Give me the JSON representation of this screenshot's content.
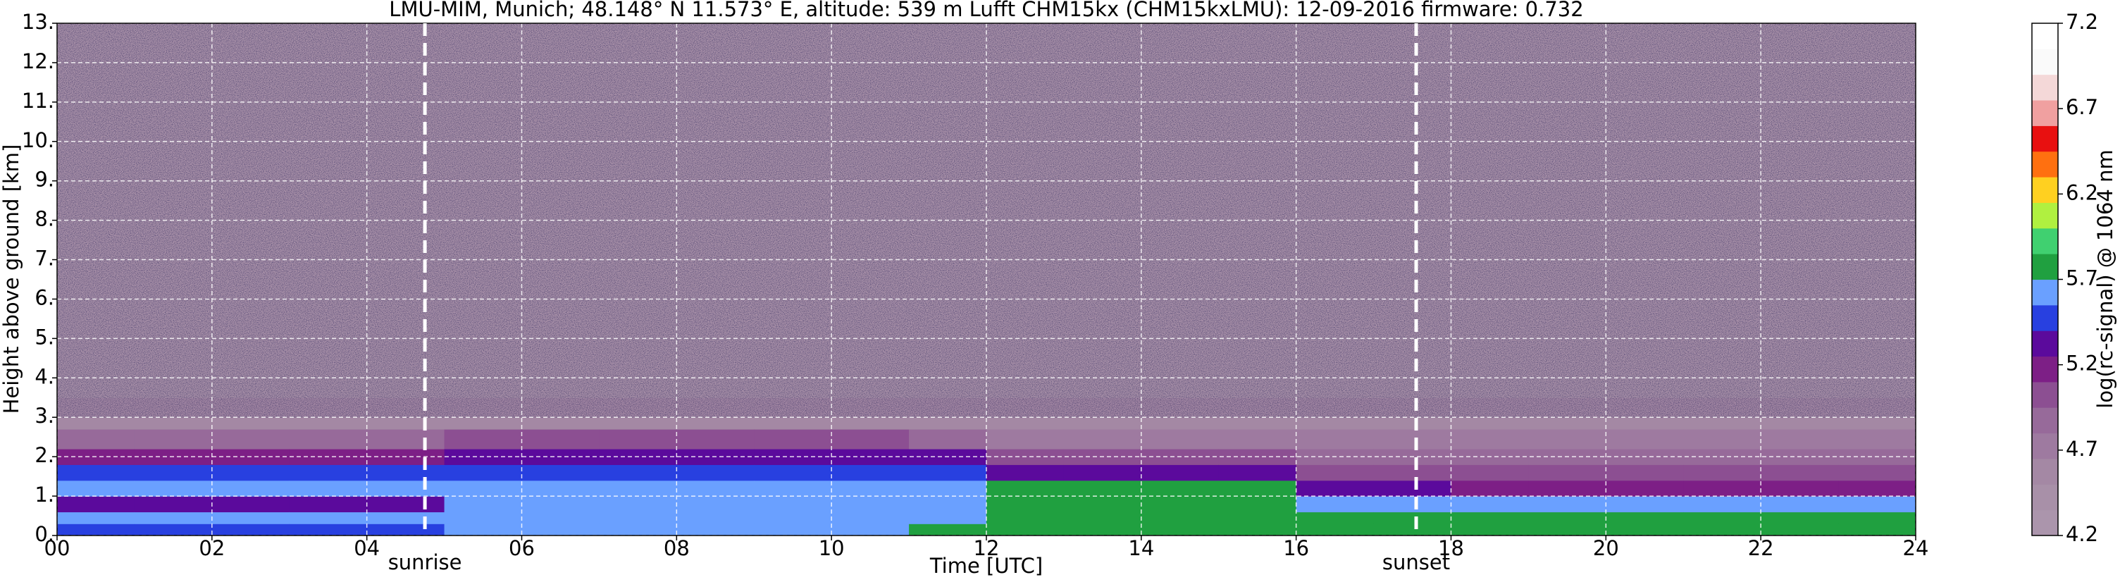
{
  "chart_data": {
    "type": "heatmap",
    "title": "LMU-MIM, Munich; 48.148° N 11.573° E, altitude: 539 m    Lufft CHM15kx (CHM15kxLMU): 12-09-2016    firmware: 0.732",
    "x_label": "Time [UTC]",
    "y_label": "Height above ground [km]",
    "colorbar_label": "log(rc-signal) @ 1064 nm",
    "x": [
      0,
      1,
      2,
      3,
      4,
      5,
      6,
      7,
      8,
      9,
      10,
      11,
      12,
      13,
      14,
      15,
      16,
      17,
      18,
      19,
      20,
      21,
      22,
      23,
      24
    ],
    "y": [
      0,
      0.3,
      0.6,
      1.0,
      1.4,
      1.8,
      2.2,
      2.7,
      3.5,
      13
    ],
    "values": [
      [
        5.45,
        5.6,
        5.3,
        5.6,
        5.45,
        5.2,
        4.9,
        4.6,
        4.45
      ],
      [
        5.45,
        5.6,
        5.3,
        5.6,
        5.45,
        5.2,
        4.9,
        4.6,
        4.45
      ],
      [
        5.45,
        5.6,
        5.3,
        5.6,
        5.45,
        5.2,
        4.9,
        4.6,
        4.45
      ],
      [
        5.45,
        5.6,
        5.3,
        5.6,
        5.45,
        5.2,
        4.9,
        4.6,
        4.45
      ],
      [
        5.45,
        5.6,
        5.3,
        5.6,
        5.45,
        5.2,
        4.9,
        4.6,
        4.45
      ],
      [
        5.6,
        5.6,
        5.6,
        5.6,
        5.55,
        5.35,
        4.95,
        4.6,
        4.45
      ],
      [
        5.6,
        5.6,
        5.6,
        5.6,
        5.55,
        5.35,
        4.95,
        4.6,
        4.45
      ],
      [
        5.6,
        5.6,
        5.6,
        5.6,
        5.55,
        5.35,
        4.95,
        4.6,
        4.45
      ],
      [
        5.6,
        5.6,
        5.6,
        5.6,
        5.55,
        5.35,
        4.95,
        4.6,
        4.45
      ],
      [
        5.6,
        5.6,
        5.6,
        5.6,
        5.55,
        5.35,
        4.95,
        4.6,
        4.45
      ],
      [
        5.6,
        5.6,
        5.6,
        5.6,
        5.55,
        5.35,
        4.95,
        4.6,
        4.45
      ],
      [
        5.75,
        5.65,
        5.65,
        5.6,
        5.55,
        5.35,
        4.9,
        4.6,
        4.45
      ],
      [
        5.85,
        5.8,
        5.75,
        5.7,
        5.3,
        5.0,
        4.8,
        4.55,
        4.45
      ],
      [
        5.85,
        5.8,
        5.75,
        5.7,
        5.3,
        5.0,
        4.8,
        4.55,
        4.45
      ],
      [
        5.85,
        5.8,
        5.75,
        5.7,
        5.3,
        5.0,
        4.8,
        4.55,
        4.45
      ],
      [
        5.85,
        5.8,
        5.75,
        5.7,
        5.3,
        5.0,
        4.8,
        4.55,
        4.45
      ],
      [
        5.8,
        5.75,
        5.6,
        5.3,
        5.1,
        4.9,
        4.7,
        4.55,
        4.45
      ],
      [
        5.8,
        5.75,
        5.6,
        5.3,
        5.1,
        4.9,
        4.7,
        4.55,
        4.45
      ],
      [
        5.85,
        5.75,
        5.6,
        5.2,
        5.1,
        4.9,
        4.7,
        4.55,
        4.45
      ],
      [
        5.85,
        5.75,
        5.6,
        5.2,
        5.1,
        4.9,
        4.7,
        4.55,
        4.45
      ],
      [
        5.85,
        5.75,
        5.6,
        5.2,
        5.1,
        4.9,
        4.7,
        4.55,
        4.45
      ],
      [
        5.85,
        5.75,
        5.6,
        5.2,
        5.1,
        4.9,
        4.7,
        4.55,
        4.45
      ],
      [
        5.85,
        5.75,
        5.6,
        5.2,
        5.1,
        4.9,
        4.7,
        4.55,
        4.45
      ],
      [
        5.85,
        5.75,
        5.6,
        5.2,
        5.1,
        4.9,
        4.7,
        4.55,
        4.45
      ]
    ],
    "xlim": [
      0,
      24
    ],
    "xticks": [
      {
        "value": 0,
        "label": "00"
      },
      {
        "value": 2,
        "label": "02"
      },
      {
        "value": 4,
        "label": "04"
      },
      {
        "value": 6,
        "label": "06"
      },
      {
        "value": 8,
        "label": "08"
      },
      {
        "value": 10,
        "label": "10"
      },
      {
        "value": 12,
        "label": "12"
      },
      {
        "value": 14,
        "label": "14"
      },
      {
        "value": 16,
        "label": "16"
      },
      {
        "value": 18,
        "label": "18"
      },
      {
        "value": 20,
        "label": "20"
      },
      {
        "value": 22,
        "label": "22"
      },
      {
        "value": 24,
        "label": "24"
      }
    ],
    "ylim": [
      0,
      13
    ],
    "yticks": [
      {
        "value": 0,
        "label": "0."
      },
      {
        "value": 1,
        "label": "1."
      },
      {
        "value": 2,
        "label": "2."
      },
      {
        "value": 3,
        "label": "3."
      },
      {
        "value": 4,
        "label": "4."
      },
      {
        "value": 5,
        "label": "5."
      },
      {
        "value": 6,
        "label": "6."
      },
      {
        "value": 7,
        "label": "7."
      },
      {
        "value": 8,
        "label": "8."
      },
      {
        "value": 9,
        "label": "9."
      },
      {
        "value": 10,
        "label": "10."
      },
      {
        "value": 11,
        "label": "11."
      },
      {
        "value": 12,
        "label": "12."
      },
      {
        "value": 13,
        "label": "13."
      }
    ],
    "clim": [
      4.2,
      7.2
    ],
    "cticks": [
      4.2,
      4.7,
      5.2,
      5.7,
      6.2,
      6.7,
      7.2
    ],
    "colormap": [
      "#ab95ac",
      "#a890a8",
      "#a488a4",
      "#9e7aa0",
      "#976a9a",
      "#8c4f92",
      "#7d1f86",
      "#5b0a9c",
      "#2840e0",
      "#6aa0ff",
      "#20a040",
      "#40d070",
      "#b0f040",
      "#ffd020",
      "#ff7010",
      "#e81010",
      "#f0a0a0",
      "#f4d8d8",
      "#fafafa",
      "#ffffff"
    ],
    "grid": true,
    "annotations": [
      {
        "x": 4.75,
        "label": "sunrise"
      },
      {
        "x": 17.55,
        "label": "sunset"
      }
    ]
  }
}
